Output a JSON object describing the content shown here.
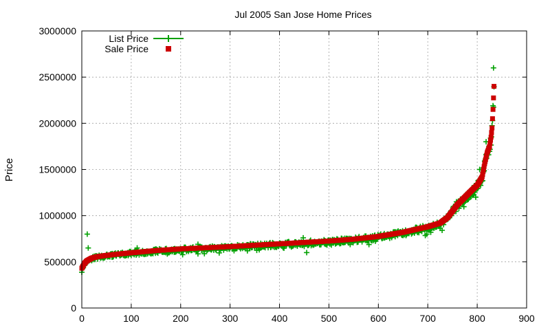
{
  "chart_data": {
    "type": "scatter",
    "title": "Jul 2005 San Jose Home Prices",
    "xlabel": "",
    "ylabel": "Price",
    "xlim": [
      0,
      900
    ],
    "ylim": [
      0,
      3000000
    ],
    "x_ticks": [
      "0",
      "100",
      "200",
      "300",
      "400",
      "500",
      "600",
      "700",
      "800",
      "900"
    ],
    "y_ticks": [
      "0",
      "500000",
      "1000000",
      "1500000",
      "2000000",
      "2500000",
      "3000000"
    ],
    "grid": true,
    "legend_position": "top-left",
    "n_points": 835,
    "sale_curve": {
      "x": [
        0,
        2,
        5,
        10,
        20,
        30,
        50,
        75,
        100,
        150,
        200,
        250,
        300,
        350,
        400,
        450,
        500,
        550,
        600,
        650,
        700,
        725,
        740,
        750,
        760,
        775,
        790,
        800,
        810,
        815,
        820,
        825,
        828,
        830,
        832,
        834,
        835
      ],
      "y": [
        430000,
        450000,
        480000,
        510000,
        540000,
        555000,
        570000,
        585000,
        598000,
        622000,
        640000,
        652000,
        665000,
        680000,
        695000,
        710000,
        725000,
        745000,
        775000,
        820000,
        880000,
        920000,
        980000,
        1050000,
        1120000,
        1200000,
        1280000,
        1330000,
        1420000,
        1560000,
        1680000,
        1750000,
        1850000,
        1950000,
        2150000,
        2400000,
        2500000
      ]
    },
    "list_outliers": [
      {
        "x": 11,
        "y": 800000
      },
      {
        "x": 13,
        "y": 650000
      },
      {
        "x": 112,
        "y": 650000
      },
      {
        "x": 235,
        "y": 690000
      },
      {
        "x": 448,
        "y": 760000
      },
      {
        "x": 455,
        "y": 600000
      },
      {
        "x": 698,
        "y": 800000
      },
      {
        "x": 706,
        "y": 820000
      },
      {
        "x": 752,
        "y": 1100000
      },
      {
        "x": 758,
        "y": 1150000
      },
      {
        "x": 797,
        "y": 1200000
      },
      {
        "x": 805,
        "y": 1500000
      },
      {
        "x": 818,
        "y": 1800000
      },
      {
        "x": 833,
        "y": 2600000
      }
    ],
    "series": [
      {
        "name": "List Price",
        "color": "#00a000",
        "marker": "plus"
      },
      {
        "name": "Sale Price",
        "color": "#cc0000",
        "marker": "square"
      }
    ]
  }
}
